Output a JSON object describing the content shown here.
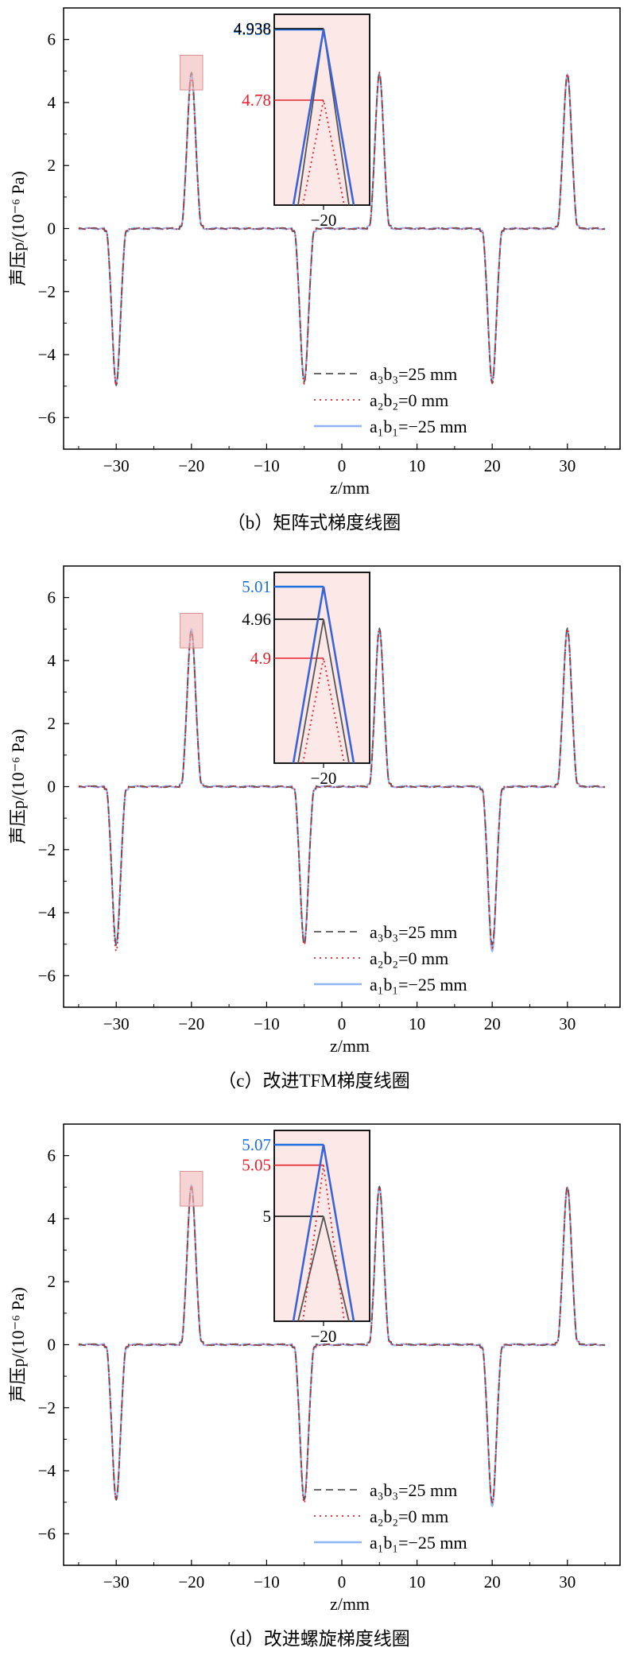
{
  "colors": {
    "series1": "#3a64d8",
    "series2": "#e8202a",
    "series3": "#555555",
    "inset_bg": "#fde8e8",
    "highlight_box": "#f2b8b8",
    "label_blue": "#1e6fe0",
    "label_red": "#e8202a",
    "label_black": "#000000"
  },
  "y_axis_label": "声压p/(10⁻⁶ Pa)",
  "x_axis_label": "z/mm",
  "x_ticks": [
    "−30",
    "−20",
    "−10",
    "0",
    "10",
    "20",
    "30"
  ],
  "y_ticks": [
    "6",
    "4",
    "2",
    "0",
    "−2",
    "−4",
    "−6"
  ],
  "legend": [
    {
      "label": "a₃b₃=25 mm",
      "style": "dash",
      "color": "#555555"
    },
    {
      "label": "a₂b₂=0 mm",
      "style": "dot",
      "color": "#e8202a"
    },
    {
      "label": "a₁b₁=−25 mm",
      "style": "solid",
      "color": "#8fb3f5"
    }
  ],
  "panels": [
    {
      "caption": "（b）矩阵式梯度线圈",
      "inset_xtick": "−20",
      "inset_labels": [
        "4.936",
        "4.938",
        "4.78"
      ]
    },
    {
      "caption": "（c）改进TFM梯度线圈",
      "inset_xtick": "−20",
      "inset_labels": [
        "5.01",
        "4.96",
        "4.9"
      ]
    },
    {
      "caption": "（d）改进螺旋梯度线圈",
      "inset_xtick": "−20",
      "inset_labels": [
        "5.07",
        "5.05",
        "5"
      ]
    }
  ],
  "chart_data": [
    {
      "type": "line",
      "title": "（b）矩阵式梯度线圈",
      "xlabel": "z/mm",
      "ylabel": "声压p/(10⁻⁶ Pa)",
      "xlim": [
        -37,
        37
      ],
      "ylim": [
        -7,
        7
      ],
      "grid": false,
      "legend_position": "bottom-right",
      "series": [
        {
          "name": "a₃b₃=25 mm",
          "style": "dash",
          "peaks": [
            [
              -30,
              -4.95
            ],
            [
              -20,
              4.938
            ],
            [
              -5,
              -4.85
            ],
            [
              5,
              4.9
            ],
            [
              20,
              -4.9
            ],
            [
              30,
              4.85
            ]
          ]
        },
        {
          "name": "a₂b₂=0 mm",
          "style": "dot",
          "peaks": [
            [
              -30,
              -4.95
            ],
            [
              -20,
              4.78
            ],
            [
              -5,
              -4.9
            ],
            [
              5,
              4.95
            ],
            [
              20,
              -4.9
            ],
            [
              30,
              4.9
            ]
          ]
        },
        {
          "name": "a₁b₁=−25 mm",
          "style": "solid",
          "peaks": [
            [
              -30,
              -4.9
            ],
            [
              -20,
              4.936
            ],
            [
              -5,
              -4.8
            ],
            [
              5,
              4.9
            ],
            [
              20,
              -4.8
            ],
            [
              30,
              4.9
            ]
          ]
        }
      ],
      "inset": {
        "x": -20,
        "values": {
          "a₁b₁=−25 mm": 4.936,
          "a₃b₃=25 mm": 4.938,
          "a₂b₂=0 mm": 4.78
        }
      }
    },
    {
      "type": "line",
      "title": "（c）改进TFM梯度线圈",
      "xlabel": "z/mm",
      "ylabel": "声压p/(10⁻⁶ Pa)",
      "xlim": [
        -37,
        37
      ],
      "ylim": [
        -7,
        7
      ],
      "grid": false,
      "legend_position": "bottom-right",
      "series": [
        {
          "name": "a₃b₃=25 mm",
          "style": "dash",
          "peaks": [
            [
              -30,
              -5.0
            ],
            [
              -20,
              4.96
            ],
            [
              -5,
              -5.0
            ],
            [
              5,
              5.0
            ],
            [
              20,
              -5.0
            ],
            [
              30,
              5.0
            ]
          ]
        },
        {
          "name": "a₂b₂=0 mm",
          "style": "dot",
          "peaks": [
            [
              -30,
              -5.2
            ],
            [
              -20,
              4.9
            ],
            [
              -5,
              -5.0
            ],
            [
              5,
              5.0
            ],
            [
              20,
              -5.1
            ],
            [
              30,
              5.0
            ]
          ]
        },
        {
          "name": "a₁b₁=−25 mm",
          "style": "solid",
          "peaks": [
            [
              -30,
              -5.0
            ],
            [
              -20,
              5.01
            ],
            [
              -5,
              -4.9
            ],
            [
              5,
              5.0
            ],
            [
              20,
              -5.2
            ],
            [
              30,
              5.0
            ]
          ]
        }
      ],
      "inset": {
        "x": -20,
        "values": {
          "a₁b₁=−25 mm": 5.01,
          "a₃b₃=25 mm": 4.96,
          "a₂b₂=0 mm": 4.9
        }
      }
    },
    {
      "type": "line",
      "title": "（d）改进螺旋梯度线圈",
      "xlabel": "z/mm",
      "ylabel": "声压p/(10⁻⁶ Pa)",
      "xlim": [
        -37,
        37
      ],
      "ylim": [
        -7,
        7
      ],
      "grid": false,
      "legend_position": "bottom-right",
      "series": [
        {
          "name": "a₃b₃=25 mm",
          "style": "dash",
          "peaks": [
            [
              -30,
              -4.9
            ],
            [
              -20,
              5.0
            ],
            [
              -5,
              -4.9
            ],
            [
              5,
              5.0
            ],
            [
              20,
              -5.0
            ],
            [
              30,
              5.0
            ]
          ]
        },
        {
          "name": "a₂b₂=0 mm",
          "style": "dot",
          "peaks": [
            [
              -30,
              -4.9
            ],
            [
              -20,
              5.05
            ],
            [
              -5,
              -5.0
            ],
            [
              5,
              5.0
            ],
            [
              20,
              -5.0
            ],
            [
              30,
              5.0
            ]
          ]
        },
        {
          "name": "a₁b₁=−25 mm",
          "style": "solid",
          "peaks": [
            [
              -30,
              -4.9
            ],
            [
              -20,
              5.07
            ],
            [
              -5,
              -4.9
            ],
            [
              5,
              5.0
            ],
            [
              20,
              -5.1
            ],
            [
              30,
              5.0
            ]
          ]
        }
      ],
      "inset": {
        "x": -20,
        "values": {
          "a₁b₁=−25 mm": 5.07,
          "a₂b₂=0 mm": 5.05,
          "a₃b₃=25 mm": 5
        }
      }
    }
  ]
}
